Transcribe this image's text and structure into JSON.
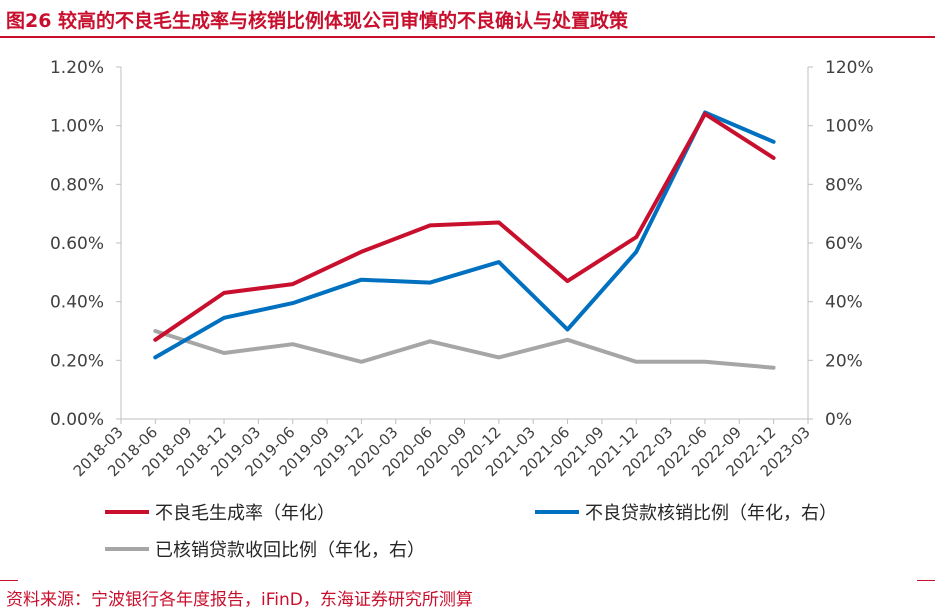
{
  "header": {
    "title": "图26 较高的不良毛生成率与核销比例体现公司审慎的不良确认与处置政策"
  },
  "footer": {
    "source": "资料来源：宁波银行各年度报告，iFinD，东海证券研究所测算"
  },
  "chart_data": {
    "type": "line",
    "title": "",
    "xlabel": "",
    "ylabel": "",
    "x_ticks": [
      "2018-03",
      "2018-06",
      "2018-09",
      "2018-12",
      "2019-03",
      "2019-06",
      "2019-09",
      "2019-12",
      "2020-03",
      "2020-06",
      "2020-09",
      "2020-12",
      "2021-03",
      "2021-06",
      "2021-09",
      "2021-12",
      "2022-03",
      "2022-06",
      "2022-09",
      "2022-12",
      "2023-03"
    ],
    "x": [
      "2018-06",
      "2018-12",
      "2019-06",
      "2019-12",
      "2020-06",
      "2020-12",
      "2021-06",
      "2021-12",
      "2022-06",
      "2022-12"
    ],
    "y_left": {
      "ticks": [
        "0.00%",
        "0.20%",
        "0.40%",
        "0.60%",
        "0.80%",
        "1.00%",
        "1.20%"
      ],
      "range": [
        0,
        1.2
      ],
      "unit": "%"
    },
    "y_right": {
      "ticks": [
        "0%",
        "20%",
        "40%",
        "60%",
        "80%",
        "100%",
        "120%"
      ],
      "range": [
        0,
        120
      ],
      "unit": "%"
    },
    "series": [
      {
        "name": "不良毛生成率（年化）",
        "axis": "left",
        "color": "#c8102e",
        "values": [
          0.27,
          0.43,
          0.46,
          0.57,
          0.66,
          0.67,
          0.47,
          0.62,
          1.04,
          0.89
        ]
      },
      {
        "name": "不良贷款核销比例（年化，右）",
        "axis": "right",
        "color": "#0070c0",
        "values": [
          21,
          34.5,
          39.5,
          47.5,
          46.5,
          53.5,
          30.5,
          57,
          104.5,
          94.5
        ]
      },
      {
        "name": "已核销贷款收回比例（年化，右）",
        "axis": "right",
        "color": "#a6a6a6",
        "values": [
          30,
          22.5,
          25.5,
          19.5,
          26.5,
          21,
          27,
          19.5,
          19.5,
          17.5
        ]
      }
    ],
    "grid": false,
    "legend_position": "bottom"
  }
}
